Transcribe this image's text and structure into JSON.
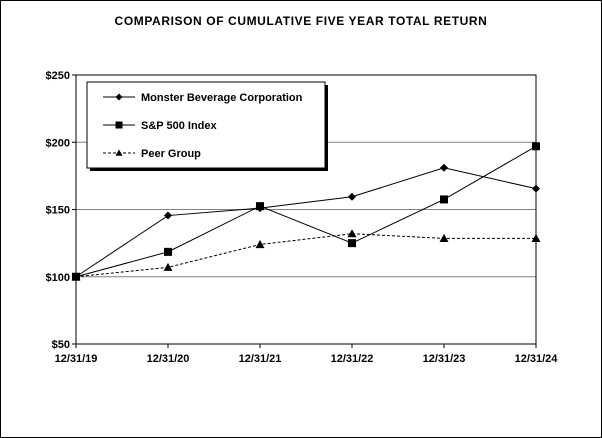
{
  "title": "COMPARISON OF CUMULATIVE FIVE YEAR TOTAL RETURN",
  "chart_data": {
    "type": "line",
    "title": "COMPARISON OF CUMULATIVE FIVE YEAR TOTAL RETURN",
    "categories": [
      "12/31/19",
      "12/31/20",
      "12/31/21",
      "12/31/22",
      "12/31/23",
      "12/31/24"
    ],
    "y_ticks": [
      "$50",
      "$100",
      "$150",
      "$200",
      "$250"
    ],
    "ylim": [
      50,
      250
    ],
    "grid": true,
    "legend_position": "top-left",
    "series": [
      {
        "name": "Monster Beverage Corporation",
        "marker": "diamond",
        "line": "solid",
        "values": [
          100,
          145.5,
          151,
          159.5,
          181,
          165.5
        ]
      },
      {
        "name": "S&P 500 Index",
        "marker": "square",
        "line": "solid",
        "values": [
          100,
          118.5,
          152.5,
          125,
          157.5,
          197
        ]
      },
      {
        "name": "Peer Group",
        "marker": "triangle",
        "line": "dashed",
        "values": [
          100,
          107,
          124,
          132,
          128.5,
          128.5
        ]
      }
    ]
  }
}
